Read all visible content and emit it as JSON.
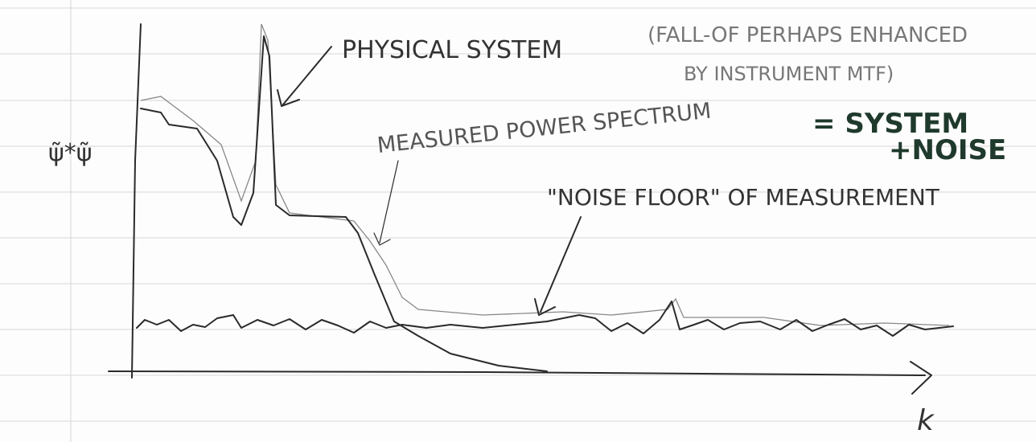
{
  "axes": {
    "y_label": "ψ̃*ψ̃",
    "x_label": "k"
  },
  "annotations": {
    "physical_system": "PHYSICAL SYSTEM",
    "fall_off_note": [
      "(FALL-OF PERHAPS ENHANCED",
      "BY INSTRUMENT MTF)"
    ],
    "measured_power_spectrum": "MEASURED POWER SPECTRUM",
    "equation": [
      "= SYSTEM",
      "+NOISE"
    ],
    "noise_floor": "\"NOISE FLOOR\" OF MEASUREMENT"
  }
}
